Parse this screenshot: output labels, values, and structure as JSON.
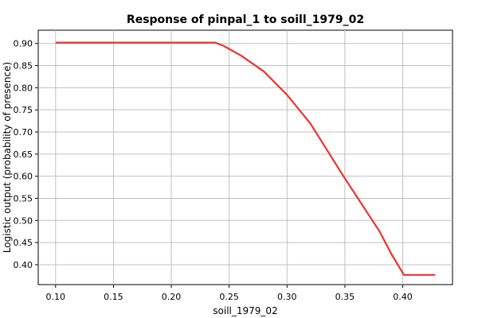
{
  "chart_data": {
    "type": "line",
    "title": "Response of pinpal_1 to soill_1979_02",
    "xlabel": "soill_1979_02",
    "ylabel": "Logistic output (probability of presence)",
    "xlim": [
      0.085,
      0.443
    ],
    "ylim": [
      0.355,
      0.93
    ],
    "x_ticks": [
      "0.10",
      "0.15",
      "0.20",
      "0.25",
      "0.30",
      "0.35",
      "0.40"
    ],
    "y_ticks": [
      "0.40",
      "0.45",
      "0.50",
      "0.55",
      "0.60",
      "0.65",
      "0.70",
      "0.75",
      "0.80",
      "0.85",
      "0.90"
    ],
    "grid": true,
    "series": [
      {
        "color": "#e8342f",
        "points": [
          [
            0.1,
            0.902
          ],
          [
            0.15,
            0.902
          ],
          [
            0.2,
            0.902
          ],
          [
            0.238,
            0.902
          ],
          [
            0.245,
            0.895
          ],
          [
            0.26,
            0.873
          ],
          [
            0.28,
            0.837
          ],
          [
            0.3,
            0.784
          ],
          [
            0.32,
            0.72
          ],
          [
            0.35,
            0.595
          ],
          [
            0.38,
            0.475
          ],
          [
            0.39,
            0.425
          ],
          [
            0.401,
            0.377
          ],
          [
            0.428,
            0.377
          ]
        ]
      }
    ]
  }
}
